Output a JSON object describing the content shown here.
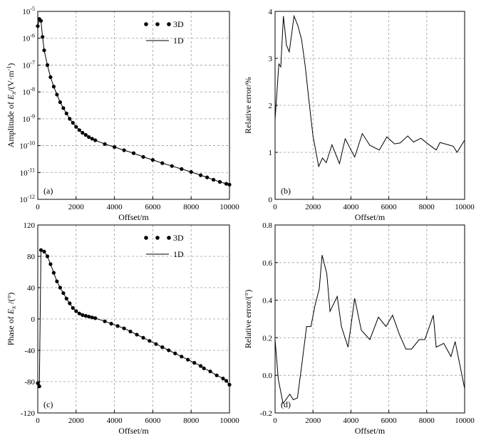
{
  "chart_data": [
    {
      "id": "a",
      "type": "scatter+line",
      "panel_label": "(a)",
      "xlabel": "Offset/m",
      "ylabel_parts": [
        "Amplitude of ",
        "E",
        "x",
        "/(V·m",
        "-1",
        ")"
      ],
      "xlim": [
        0,
        10000
      ],
      "ylim_log10": [
        -12,
        -5
      ],
      "yscale": "log",
      "x_ticks": [
        0,
        2000,
        4000,
        6000,
        8000,
        10000
      ],
      "y_ticks_exp": [
        -12,
        -11,
        -10,
        -9,
        -8,
        -7,
        -6,
        -5
      ],
      "y_tick_base": "10",
      "legend_position": "top-center",
      "series": [
        {
          "name": "3D",
          "style": "dots",
          "x": [
            0,
            83,
            167,
            250,
            333,
            500,
            667,
            833,
            1000,
            1167,
            1333,
            1500,
            1667,
            1833,
            2000,
            2167,
            2333,
            2500,
            2667,
            2833,
            3000,
            3500,
            4000,
            4500,
            5000,
            5500,
            6000,
            6500,
            7000,
            7500,
            8000,
            8500,
            8833,
            9167,
            9500,
            9833,
            10000
          ],
          "y_log10": [
            -5.55,
            -5.28,
            -5.35,
            -5.95,
            -6.45,
            -7.0,
            -7.45,
            -7.8,
            -8.1,
            -8.38,
            -8.6,
            -8.8,
            -9.0,
            -9.15,
            -9.3,
            -9.42,
            -9.52,
            -9.6,
            -9.68,
            -9.74,
            -9.8,
            -9.94,
            -10.05,
            -10.17,
            -10.28,
            -10.42,
            -10.53,
            -10.65,
            -10.76,
            -10.87,
            -10.98,
            -11.1,
            -11.18,
            -11.27,
            -11.35,
            -11.42,
            -11.45
          ]
        },
        {
          "name": "1D",
          "style": "line",
          "x": [
            0,
            83,
            167,
            250,
            333,
            500,
            667,
            833,
            1000,
            1167,
            1333,
            1500,
            1667,
            1833,
            2000,
            2167,
            2333,
            2500,
            2667,
            2833,
            3000,
            3500,
            4000,
            4500,
            5000,
            5500,
            6000,
            6500,
            7000,
            7500,
            8000,
            8500,
            8833,
            9167,
            9500,
            9833,
            10000
          ],
          "y_log10": [
            -5.55,
            -5.28,
            -5.35,
            -5.95,
            -6.45,
            -7.0,
            -7.45,
            -7.8,
            -8.1,
            -8.38,
            -8.6,
            -8.8,
            -9.0,
            -9.15,
            -9.3,
            -9.42,
            -9.52,
            -9.6,
            -9.68,
            -9.74,
            -9.8,
            -9.94,
            -10.05,
            -10.17,
            -10.28,
            -10.42,
            -10.53,
            -10.65,
            -10.76,
            -10.87,
            -10.98,
            -11.1,
            -11.18,
            -11.27,
            -11.35,
            -11.42,
            -11.45
          ]
        }
      ]
    },
    {
      "id": "b",
      "type": "line",
      "panel_label": "(b)",
      "xlabel": "Offset/m",
      "ylabel": "Relative error/%",
      "xlim": [
        0,
        10000
      ],
      "ylim": [
        0,
        4
      ],
      "x_ticks": [
        0,
        2000,
        4000,
        6000,
        8000,
        10000
      ],
      "y_ticks": [
        0,
        1,
        2,
        3,
        4
      ],
      "series": [
        {
          "name": "Relative error",
          "style": "line",
          "x": [
            0,
            200,
            300,
            440,
            600,
            750,
            1000,
            1200,
            1400,
            1600,
            1800,
            2000,
            2300,
            2500,
            2700,
            3000,
            3400,
            3700,
            4200,
            4600,
            5000,
            5500,
            5900,
            6300,
            6600,
            7000,
            7300,
            7700,
            8000,
            8500,
            8700,
            9400,
            9600,
            10000
          ],
          "y": [
            1.7,
            2.88,
            2.82,
            3.9,
            3.28,
            3.14,
            3.9,
            3.7,
            3.4,
            2.8,
            2.05,
            1.35,
            0.7,
            0.88,
            0.78,
            1.16,
            0.76,
            1.29,
            0.9,
            1.4,
            1.15,
            1.05,
            1.33,
            1.18,
            1.2,
            1.35,
            1.22,
            1.3,
            1.2,
            1.05,
            1.21,
            1.13,
            1.0,
            1.26
          ]
        }
      ]
    },
    {
      "id": "c",
      "type": "scatter+line",
      "panel_label": "(c)",
      "xlabel": "Offset/m",
      "ylabel_parts": [
        "Phase of ",
        "E",
        "x",
        " /(°)"
      ],
      "xlim": [
        0,
        10000
      ],
      "ylim": [
        -120,
        120
      ],
      "x_ticks": [
        0,
        2000,
        4000,
        6000,
        8000,
        10000
      ],
      "y_ticks": [
        -120,
        -80,
        -40,
        0,
        40,
        80,
        120
      ],
      "legend_position": "top-center",
      "series": [
        {
          "name": "3D",
          "style": "dots",
          "x": [
            0,
            83,
            167,
            333,
            500,
            667,
            833,
            1000,
            1167,
            1333,
            1500,
            1667,
            1833,
            2000,
            2167,
            2333,
            2500,
            2667,
            2833,
            3000,
            3500,
            3833,
            4167,
            4500,
            4833,
            5167,
            5500,
            5833,
            6167,
            6500,
            6833,
            7167,
            7500,
            7833,
            8167,
            8500,
            8667,
            9000,
            9333,
            9667,
            9833,
            10000
          ],
          "y": [
            -82,
            -86,
            88,
            86,
            80,
            70,
            59,
            48,
            40,
            33,
            26,
            20,
            14,
            10,
            7,
            5,
            4,
            3,
            2,
            1,
            -3,
            -6,
            -9,
            -12,
            -16,
            -20,
            -24,
            -28,
            -32,
            -36,
            -40,
            -44,
            -48,
            -52,
            -56,
            -60,
            -63,
            -67,
            -72,
            -76,
            -79,
            -84
          ]
        },
        {
          "name": "1D",
          "style": "line",
          "x": [
            0,
            83,
            167,
            333,
            500,
            667,
            833,
            1000,
            1167,
            1333,
            1500,
            1667,
            1833,
            2000,
            2167,
            2333,
            2500,
            2667,
            2833,
            3000,
            3500,
            3833,
            4167,
            4500,
            4833,
            5167,
            5500,
            5833,
            6167,
            6500,
            6833,
            7167,
            7500,
            7833,
            8167,
            8500,
            8667,
            9000,
            9333,
            9667,
            9833,
            10000
          ],
          "y": [
            -82,
            -86,
            88,
            86,
            80,
            70,
            59,
            48,
            40,
            33,
            26,
            20,
            14,
            10,
            7,
            5,
            4,
            3,
            2,
            1,
            -3,
            -6,
            -9,
            -12,
            -16,
            -20,
            -24,
            -28,
            -32,
            -36,
            -40,
            -44,
            -48,
            -52,
            -56,
            -60,
            -63,
            -67,
            -72,
            -76,
            -79,
            -84
          ]
        }
      ]
    },
    {
      "id": "d",
      "type": "line",
      "panel_label": "(d)",
      "xlabel": "Offset/m",
      "ylabel": "Relative error/(°)",
      "xlim": [
        0,
        10000
      ],
      "ylim": [
        -0.2,
        0.8
      ],
      "x_ticks": [
        0,
        2000,
        4000,
        6000,
        8000,
        10000
      ],
      "y_ticks": [
        -0.2,
        0.0,
        0.2,
        0.4,
        0.6,
        0.8
      ],
      "y_tick_labels": [
        "-0.2",
        "0.0",
        "0.2",
        "0.4",
        "0.6",
        "0.8"
      ],
      "series": [
        {
          "name": "Relative error",
          "style": "line",
          "x": [
            0,
            170,
            420,
            780,
            960,
            1180,
            1440,
            1660,
            1890,
            2100,
            2330,
            2480,
            2730,
            2900,
            3280,
            3500,
            3850,
            4200,
            4550,
            5000,
            5450,
            5850,
            6200,
            6550,
            6900,
            7200,
            7600,
            7900,
            8350,
            8500,
            8900,
            9280,
            9500,
            10000
          ],
          "y": [
            0.19,
            -0.02,
            -0.15,
            -0.1,
            -0.13,
            -0.12,
            0.08,
            0.26,
            0.26,
            0.37,
            0.46,
            0.64,
            0.54,
            0.34,
            0.42,
            0.26,
            0.15,
            0.41,
            0.24,
            0.19,
            0.31,
            0.26,
            0.32,
            0.22,
            0.14,
            0.14,
            0.19,
            0.19,
            0.32,
            0.15,
            0.17,
            0.1,
            0.18,
            -0.07
          ]
        }
      ]
    }
  ]
}
